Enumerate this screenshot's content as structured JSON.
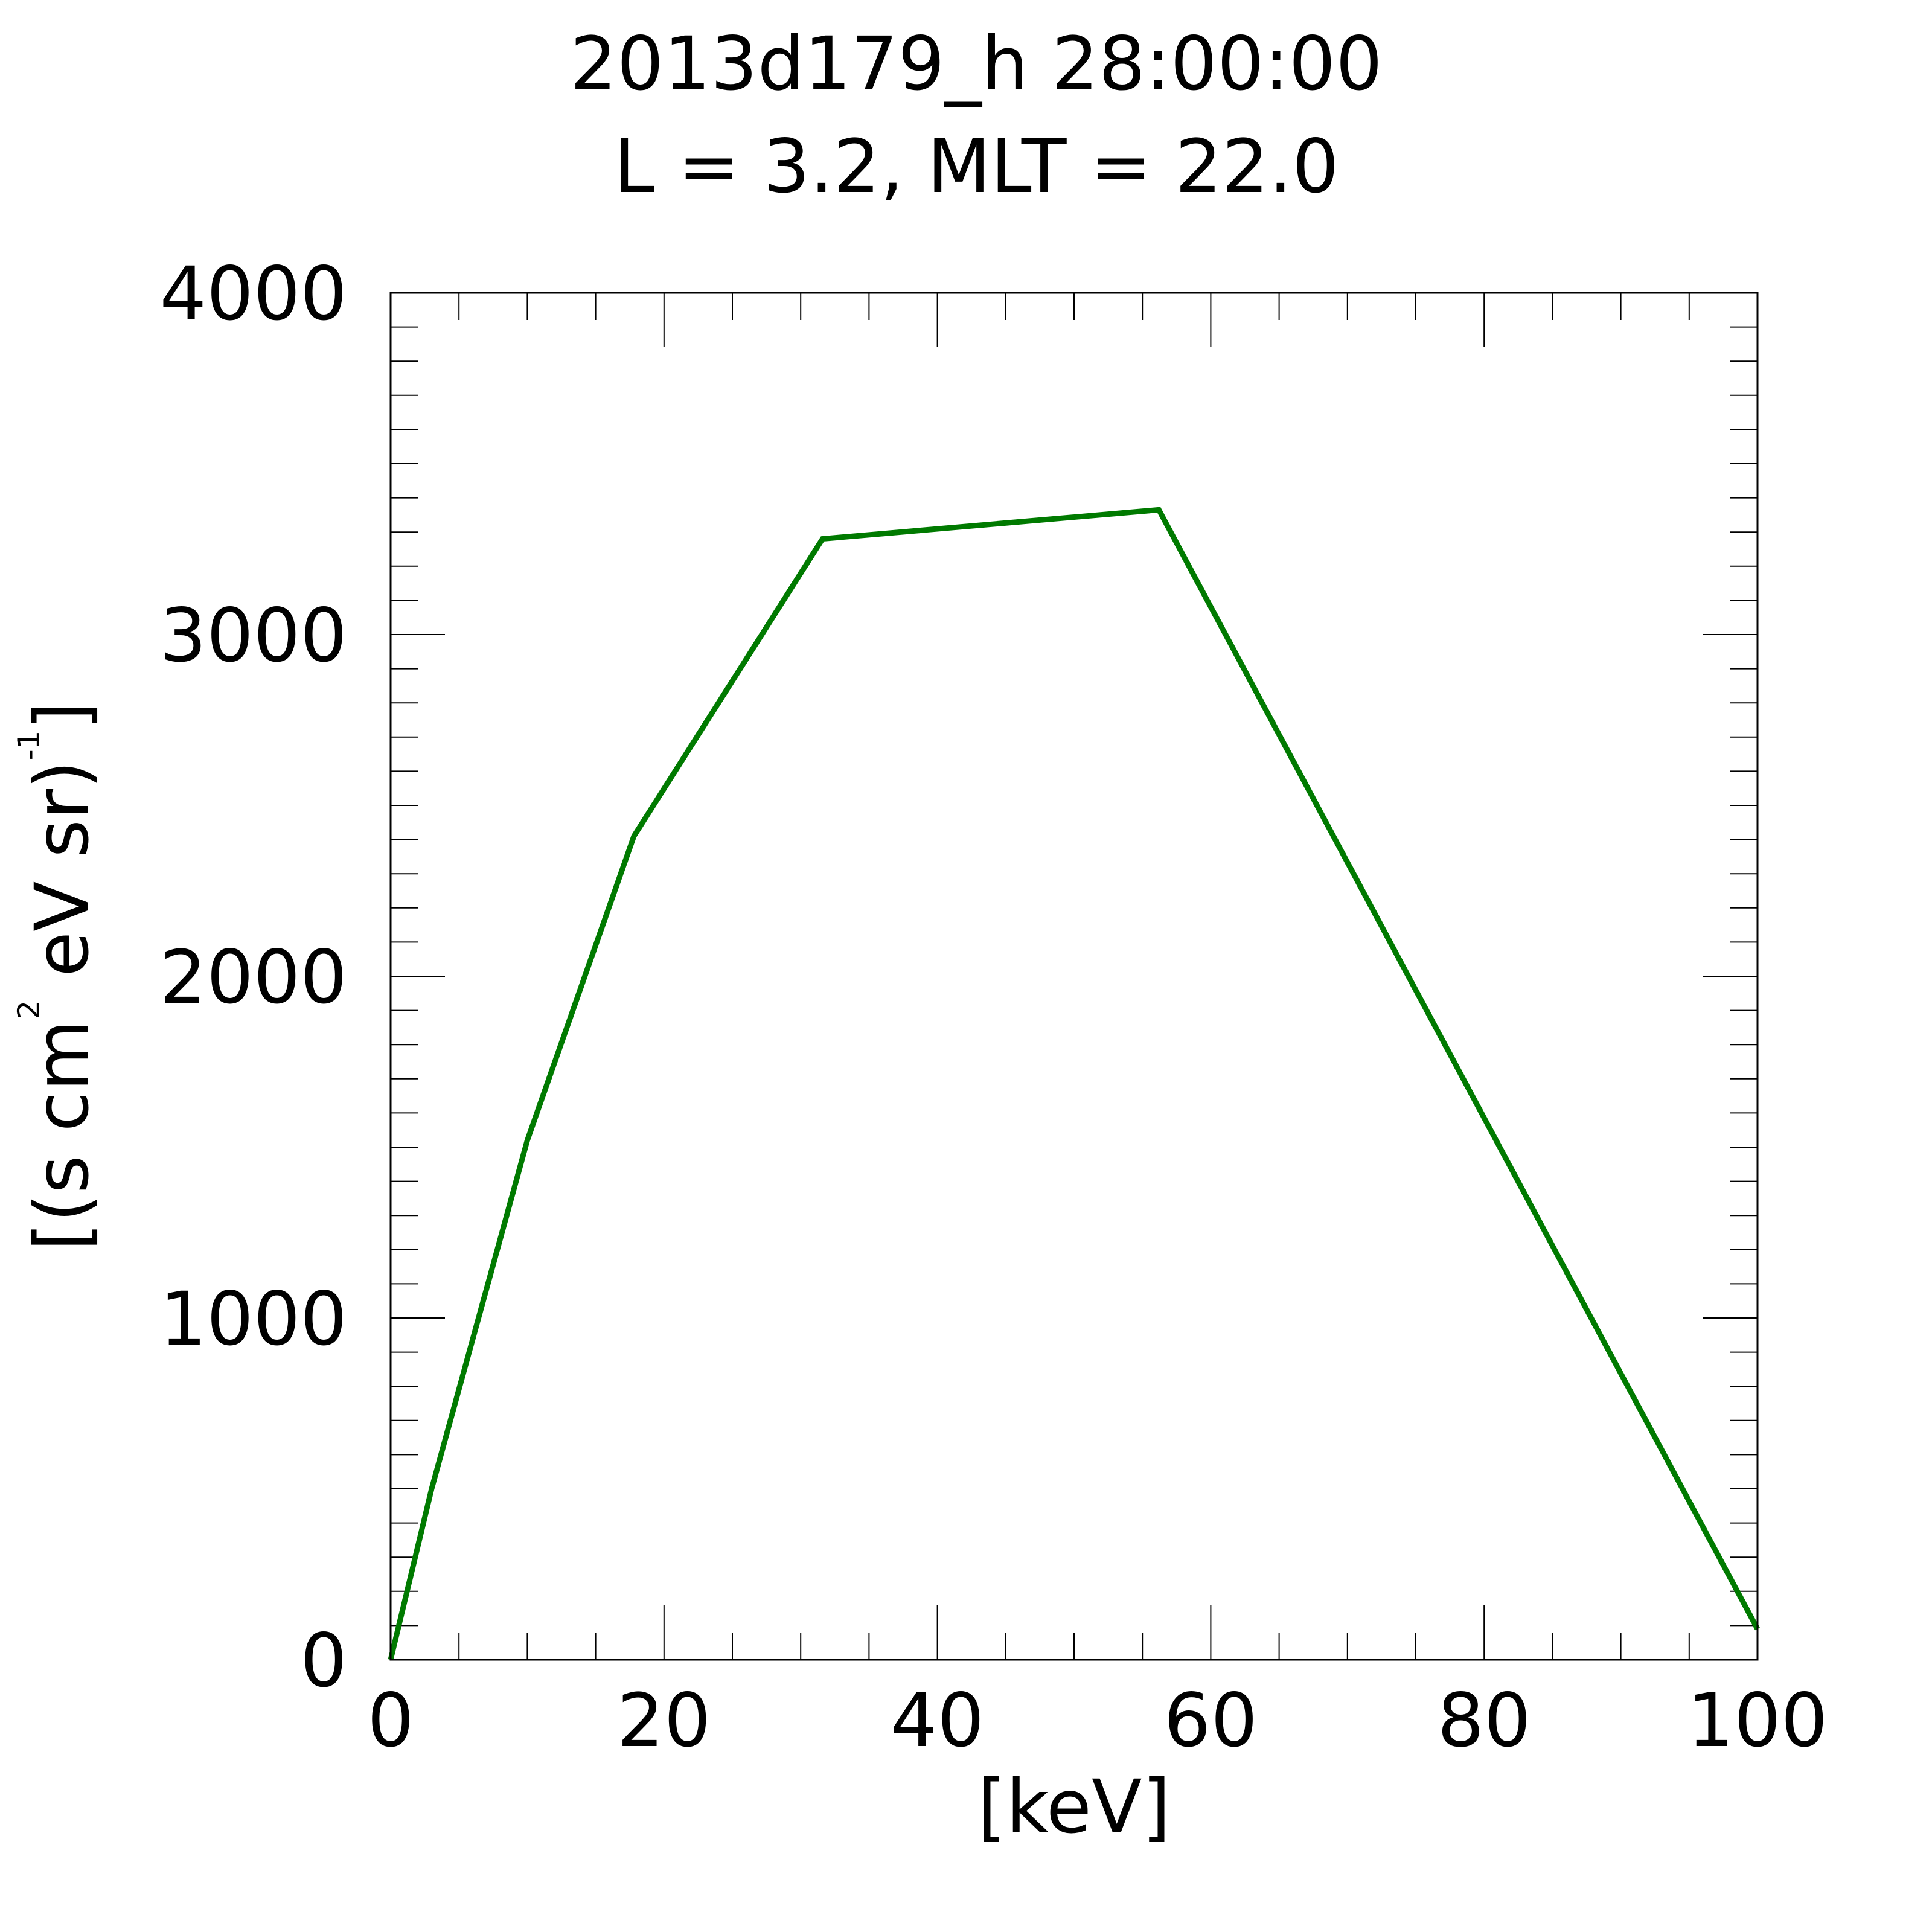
{
  "chart_data": {
    "type": "line",
    "title_line1": "2013d179_h  28:00:00",
    "title_line2": "L = 3.2, MLT = 22.0",
    "xlabel": "[keV]",
    "ylabel": {
      "part1": "[(s cm",
      "sup1": "2",
      "part2": " eV sr)",
      "sup2": "-1",
      "part3": "]"
    },
    "xlim": [
      0,
      100
    ],
    "ylim": [
      0,
      4000
    ],
    "x_ticks": [
      0,
      20,
      40,
      60,
      80,
      100
    ],
    "x_tick_labels": [
      "0",
      "20",
      "40",
      "60",
      "80",
      "100"
    ],
    "x_minor_step": 5,
    "y_ticks": [
      0,
      1000,
      2000,
      3000,
      4000
    ],
    "y_tick_labels": [
      "0",
      "1000",
      "2000",
      "3000",
      "4000"
    ],
    "y_minor_step": 100,
    "grid": false,
    "series": [
      {
        "color": "#007a00",
        "x": [
          0,
          3,
          10,
          17.8,
          31.6,
          56.2,
          100
        ],
        "y": [
          0,
          500,
          1520,
          2410,
          3280,
          3365,
          90
        ]
      }
    ]
  }
}
